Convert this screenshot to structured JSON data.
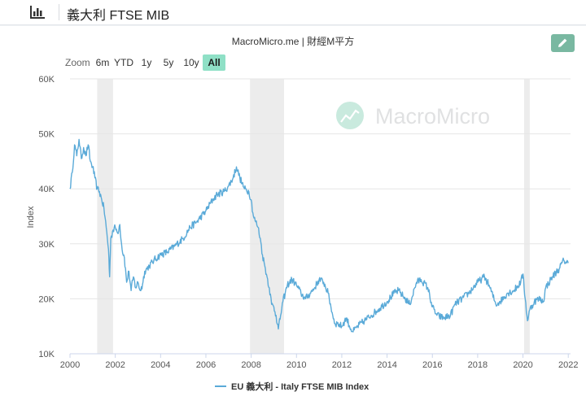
{
  "header": {
    "title": "義大利 FTSE MIB",
    "icon": "bar-chart-icon"
  },
  "subtitle": "MacroMicro.me | 財經M平方",
  "edit_icon": "pencil-icon",
  "watermark": "MacroMicro",
  "zoom": {
    "label": "Zoom",
    "buttons": [
      "6m",
      "YTD",
      "1y",
      "5y",
      "10y",
      "All"
    ],
    "active": "All"
  },
  "colors": {
    "series": "#5aaad8",
    "recession": "#ececec",
    "accent": "#8fe0c6"
  },
  "chart_data": {
    "type": "line",
    "ylabel": "Index",
    "xlim": [
      2000,
      2022.1
    ],
    "ylim": [
      10000,
      60000
    ],
    "yticks": [
      10000,
      20000,
      30000,
      40000,
      50000,
      60000
    ],
    "ytick_labels": [
      "10K",
      "20K",
      "30K",
      "40K",
      "50K",
      "60K"
    ],
    "xticks": [
      2000,
      2002,
      2004,
      2006,
      2008,
      2010,
      2012,
      2014,
      2016,
      2018,
      2020,
      2022
    ],
    "xtick_labels": [
      "2000",
      "2002",
      "2004",
      "2006",
      "2008",
      "2010",
      "2012",
      "2014",
      "2016",
      "2018",
      "2020",
      "2022"
    ],
    "recessions": [
      [
        2001.2,
        2001.9
      ],
      [
        2007.95,
        2009.45
      ],
      [
        2020.05,
        2020.3
      ]
    ],
    "legend": "EU 義大利 - Italy FTSE MIB Index",
    "legend_position": "bottom-center",
    "series": [
      {
        "name": "EU 義大利 - Italy FTSE MIB Index",
        "x": [
          2000.0,
          2000.1,
          2000.2,
          2000.3,
          2000.4,
          2000.5,
          2000.6,
          2000.7,
          2000.8,
          2000.9,
          2001.0,
          2001.1,
          2001.2,
          2001.3,
          2001.4,
          2001.5,
          2001.6,
          2001.7,
          2001.75,
          2001.8,
          2001.9,
          2002.0,
          2002.1,
          2002.2,
          2002.3,
          2002.4,
          2002.5,
          2002.6,
          2002.7,
          2002.8,
          2002.9,
          2003.0,
          2003.1,
          2003.2,
          2003.3,
          2003.5,
          2003.7,
          2004.0,
          2004.3,
          2004.6,
          2005.0,
          2005.3,
          2005.6,
          2006.0,
          2006.3,
          2006.5,
          2006.8,
          2007.0,
          2007.2,
          2007.35,
          2007.5,
          2007.6,
          2007.7,
          2007.9,
          2008.0,
          2008.1,
          2008.2,
          2008.3,
          2008.4,
          2008.5,
          2008.6,
          2008.7,
          2008.8,
          2008.9,
          2009.0,
          2009.1,
          2009.2,
          2009.3,
          2009.4,
          2009.5,
          2009.6,
          2009.8,
          2010.0,
          2010.2,
          2010.4,
          2010.6,
          2010.8,
          2011.0,
          2011.2,
          2011.4,
          2011.6,
          2011.7,
          2011.8,
          2012.0,
          2012.2,
          2012.4,
          2012.5,
          2012.7,
          2013.0,
          2013.3,
          2013.6,
          2014.0,
          2014.3,
          2014.5,
          2014.8,
          2015.0,
          2015.3,
          2015.5,
          2015.8,
          2016.0,
          2016.2,
          2016.5,
          2016.8,
          2017.0,
          2017.3,
          2017.6,
          2018.0,
          2018.3,
          2018.5,
          2018.8,
          2019.0,
          2019.3,
          2019.6,
          2019.9,
          2020.0,
          2020.1,
          2020.2,
          2020.3,
          2020.5,
          2020.7,
          2020.9,
          2021.0,
          2021.3,
          2021.6,
          2021.8,
          2022.0
        ],
        "y": [
          40000,
          43000,
          48000,
          46000,
          49000,
          45500,
          47500,
          46000,
          48000,
          45000,
          44000,
          42000,
          40000,
          39500,
          38000,
          36500,
          33000,
          29000,
          24000,
          31000,
          32500,
          33000,
          32000,
          33500,
          29000,
          27500,
          23000,
          25000,
          21500,
          24000,
          22000,
          23000,
          21500,
          22500,
          25000,
          26000,
          27000,
          28000,
          28500,
          29500,
          31000,
          33000,
          34000,
          36000,
          38000,
          39000,
          39500,
          40500,
          42000,
          44000,
          42000,
          41000,
          40000,
          39500,
          38000,
          35000,
          34000,
          33000,
          31000,
          28000,
          26000,
          24000,
          22000,
          19000,
          18500,
          17000,
          14500,
          17000,
          19500,
          21000,
          22500,
          23500,
          22500,
          21000,
          20000,
          21000,
          22000,
          23500,
          23000,
          21000,
          17000,
          15500,
          15500,
          15000,
          16500,
          14500,
          14000,
          15000,
          16000,
          17000,
          18000,
          19500,
          21000,
          21500,
          20000,
          19000,
          23000,
          23500,
          22000,
          18500,
          17000,
          16500,
          17000,
          19000,
          20000,
          21000,
          23000,
          24000,
          22500,
          19000,
          19500,
          21000,
          21500,
          23000,
          24500,
          20000,
          16000,
          18000,
          19500,
          20000,
          19500,
          22000,
          24000,
          25500,
          27000,
          26500
        ]
      }
    ]
  }
}
